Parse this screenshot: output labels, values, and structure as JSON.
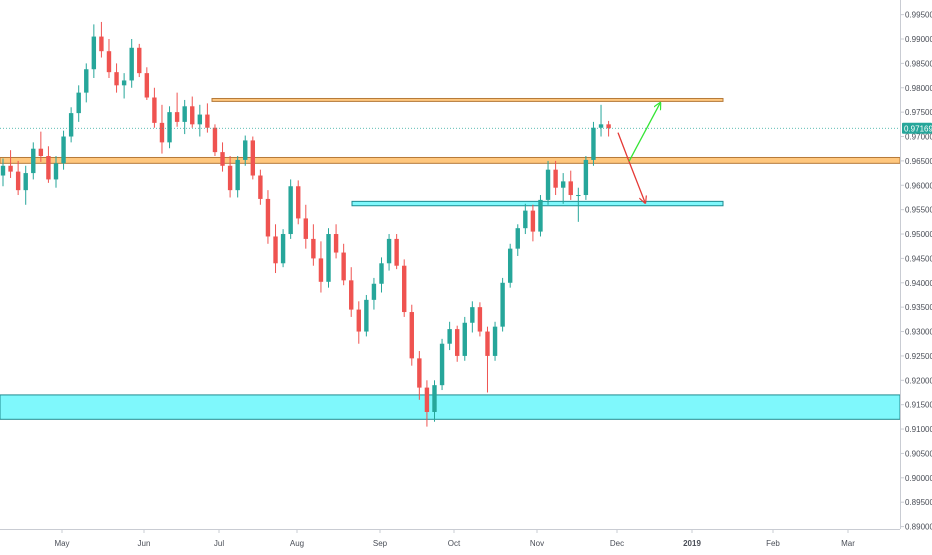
{
  "chart_data": {
    "type": "candlestick",
    "title": "",
    "xlabel": "",
    "ylabel": "",
    "x_ticks": [
      "May",
      "Jun",
      "Jul",
      "Aug",
      "Sep",
      "Oct",
      "Nov",
      "Dec",
      "2019",
      "Feb",
      "Mar"
    ],
    "y_ticks": [
      "0.99500",
      "0.99000",
      "0.98500",
      "0.98000",
      "0.97500",
      "0.97000",
      "0.96500",
      "0.96000",
      "0.95500",
      "0.95000",
      "0.94500",
      "0.94000",
      "0.93500",
      "0.93000",
      "0.92500",
      "0.92000",
      "0.91500",
      "0.91000",
      "0.90500",
      "0.90000",
      "0.89500",
      "0.89000"
    ],
    "ylim": [
      0.8895,
      0.998
    ],
    "last_price": "0.97169",
    "colors": {
      "up": "#26a69a",
      "down": "#ef5350",
      "resistance_zone": "#ffc77e",
      "support_zone": "#7ff8fc",
      "bullish_arrow": "#34e534",
      "bearish_arrow": "#e53935",
      "price_line": "#26a69a"
    },
    "zones": [
      {
        "kind": "resistance",
        "from": 0.9772,
        "to": 0.9778
      },
      {
        "kind": "resistance",
        "from": 0.9645,
        "to": 0.9657
      },
      {
        "kind": "support",
        "from": 0.9558,
        "to": 0.9567
      },
      {
        "kind": "support",
        "from": 0.912,
        "to": 0.917
      }
    ],
    "series": [
      {
        "ohlc": [
          [
            0.962,
            0.9655,
            0.9598,
            0.964
          ],
          [
            0.964,
            0.9672,
            0.9615,
            0.9628
          ],
          [
            0.9628,
            0.965,
            0.958,
            0.959
          ],
          [
            0.959,
            0.964,
            0.956,
            0.9625
          ],
          [
            0.9625,
            0.9688,
            0.9612,
            0.9675
          ],
          [
            0.9675,
            0.971,
            0.9648,
            0.966
          ],
          [
            0.966,
            0.968,
            0.9605,
            0.9612
          ],
          [
            0.9612,
            0.966,
            0.9595,
            0.9645
          ],
          [
            0.9645,
            0.9712,
            0.9632,
            0.97
          ],
          [
            0.97,
            0.976,
            0.9688,
            0.9748
          ],
          [
            0.9748,
            0.9805,
            0.973,
            0.979
          ],
          [
            0.979,
            0.985,
            0.977,
            0.9838
          ],
          [
            0.9838,
            0.993,
            0.982,
            0.9905
          ],
          [
            0.9905,
            0.9935,
            0.9862,
            0.9875
          ],
          [
            0.9875,
            0.99,
            0.982,
            0.9832
          ],
          [
            0.9832,
            0.985,
            0.979,
            0.9805
          ],
          [
            0.9805,
            0.983,
            0.9778,
            0.9815
          ],
          [
            0.9815,
            0.99,
            0.98,
            0.9882
          ],
          [
            0.9882,
            0.989,
            0.9822,
            0.983
          ],
          [
            0.983,
            0.9842,
            0.9775,
            0.978
          ],
          [
            0.978,
            0.98,
            0.9718,
            0.9728
          ],
          [
            0.9728,
            0.9765,
            0.9665,
            0.9688
          ],
          [
            0.9688,
            0.9762,
            0.9676,
            0.975
          ],
          [
            0.975,
            0.979,
            0.972,
            0.973
          ],
          [
            0.973,
            0.9775,
            0.9705,
            0.9762
          ],
          [
            0.9762,
            0.9782,
            0.9718,
            0.9725
          ],
          [
            0.9725,
            0.9765,
            0.97,
            0.9745
          ],
          [
            0.9745,
            0.9768,
            0.9708,
            0.9718
          ],
          [
            0.9718,
            0.9725,
            0.966,
            0.9668
          ],
          [
            0.9668,
            0.9688,
            0.9628,
            0.964
          ],
          [
            0.964,
            0.966,
            0.9575,
            0.959
          ],
          [
            0.959,
            0.966,
            0.9575,
            0.9652
          ],
          [
            0.9652,
            0.9702,
            0.964,
            0.9692
          ],
          [
            0.9692,
            0.97,
            0.9612,
            0.962
          ],
          [
            0.962,
            0.9632,
            0.956,
            0.9572
          ],
          [
            0.9572,
            0.959,
            0.948,
            0.9495
          ],
          [
            0.9495,
            0.952,
            0.942,
            0.944
          ],
          [
            0.944,
            0.951,
            0.9432,
            0.95
          ],
          [
            0.95,
            0.9612,
            0.949,
            0.9598
          ],
          [
            0.9598,
            0.961,
            0.952,
            0.9532
          ],
          [
            0.9532,
            0.956,
            0.947,
            0.949
          ],
          [
            0.949,
            0.952,
            0.9435,
            0.945
          ],
          [
            0.945,
            0.9485,
            0.938,
            0.9402
          ],
          [
            0.9402,
            0.9512,
            0.939,
            0.95
          ],
          [
            0.95,
            0.952,
            0.945,
            0.9462
          ],
          [
            0.9462,
            0.948,
            0.9395,
            0.9405
          ],
          [
            0.9405,
            0.9432,
            0.933,
            0.9345
          ],
          [
            0.9345,
            0.9362,
            0.9275,
            0.93
          ],
          [
            0.93,
            0.9375,
            0.929,
            0.9365
          ],
          [
            0.9365,
            0.941,
            0.9345,
            0.9398
          ],
          [
            0.9398,
            0.9452,
            0.938,
            0.944
          ],
          [
            0.944,
            0.95,
            0.9425,
            0.949
          ],
          [
            0.949,
            0.95,
            0.9428,
            0.9435
          ],
          [
            0.9435,
            0.9448,
            0.933,
            0.934
          ],
          [
            0.934,
            0.9355,
            0.923,
            0.9245
          ],
          [
            0.9245,
            0.926,
            0.916,
            0.9185
          ],
          [
            0.9185,
            0.92,
            0.9105,
            0.9135
          ],
          [
            0.9135,
            0.92,
            0.9115,
            0.919
          ],
          [
            0.919,
            0.9285,
            0.918,
            0.9275
          ],
          [
            0.9275,
            0.932,
            0.9262,
            0.9305
          ],
          [
            0.9305,
            0.9312,
            0.9238,
            0.925
          ],
          [
            0.925,
            0.933,
            0.924,
            0.9318
          ],
          [
            0.9318,
            0.9362,
            0.9298,
            0.935
          ],
          [
            0.935,
            0.936,
            0.929,
            0.93
          ],
          [
            0.93,
            0.931,
            0.9175,
            0.925
          ],
          [
            0.925,
            0.932,
            0.924,
            0.931
          ],
          [
            0.931,
            0.941,
            0.93,
            0.94
          ],
          [
            0.94,
            0.948,
            0.939,
            0.947
          ],
          [
            0.947,
            0.952,
            0.9455,
            0.9512
          ],
          [
            0.9512,
            0.9562,
            0.95,
            0.9548
          ],
          [
            0.9548,
            0.956,
            0.9485,
            0.9505
          ],
          [
            0.9505,
            0.958,
            0.9495,
            0.957
          ],
          [
            0.957,
            0.965,
            0.956,
            0.9632
          ],
          [
            0.9632,
            0.965,
            0.958,
            0.9595
          ],
          [
            0.9595,
            0.9625,
            0.9562,
            0.9608
          ],
          [
            0.9608,
            0.963,
            0.957,
            0.958
          ],
          [
            0.958,
            0.9595,
            0.9525,
            0.958
          ],
          [
            0.958,
            0.966,
            0.957,
            0.9652
          ],
          [
            0.9652,
            0.973,
            0.964,
            0.9718
          ],
          [
            0.9718,
            0.9765,
            0.97,
            0.9725
          ],
          [
            0.9725,
            0.9732,
            0.97,
            0.9717
          ]
        ]
      }
    ],
    "axis_dates": [
      "May",
      "Jun",
      "Jul",
      "Aug",
      "Sep",
      "Oct",
      "Nov",
      "Dec",
      "2019",
      "Feb",
      "Mar"
    ]
  }
}
